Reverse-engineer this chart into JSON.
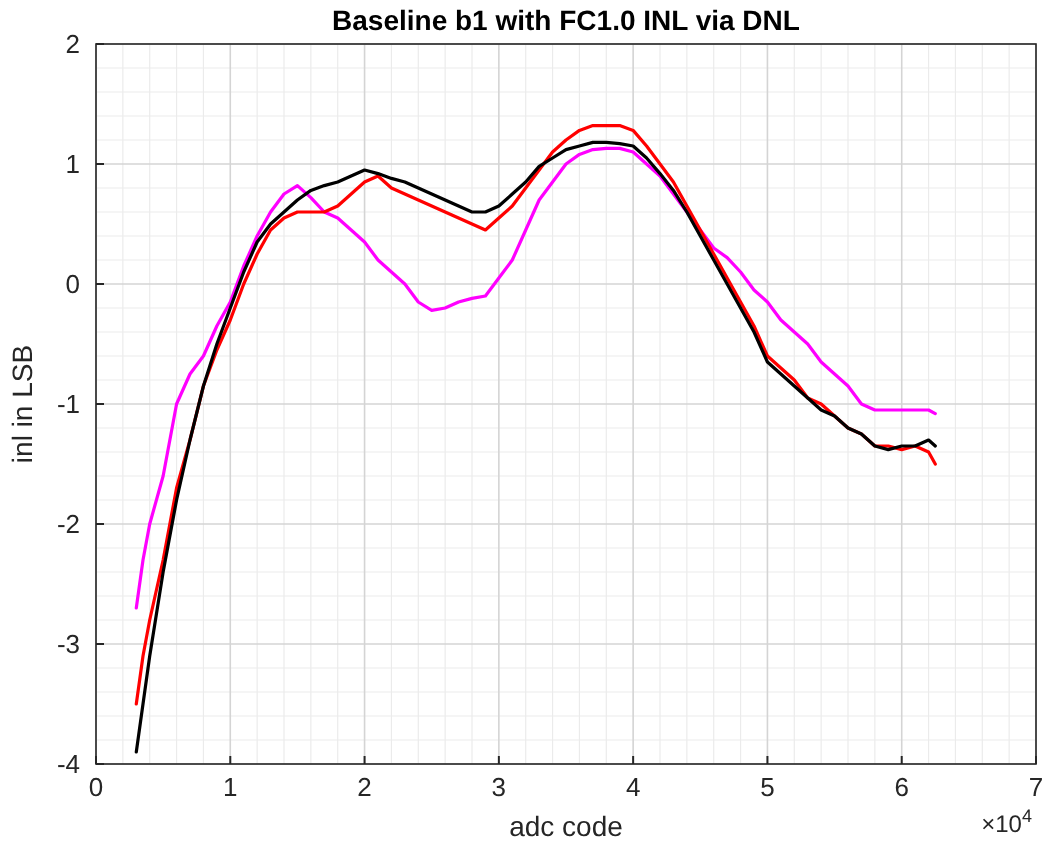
{
  "chart_data": {
    "type": "line",
    "title": "Baseline b1 with FC1.0 INL via DNL",
    "xlabel": "adc code",
    "ylabel": "inl in LSB",
    "annotations": [
      "×10$^{4}$"
    ],
    "x": [
      0.3,
      0.35,
      0.4,
      0.5,
      0.6,
      0.7,
      0.8,
      0.9,
      1.0,
      1.1,
      1.2,
      1.3,
      1.4,
      1.5,
      1.6,
      1.7,
      1.8,
      1.9,
      2.0,
      2.1,
      2.2,
      2.3,
      2.4,
      2.5,
      2.6,
      2.7,
      2.8,
      2.9,
      3.0,
      3.1,
      3.2,
      3.3,
      3.4,
      3.5,
      3.6,
      3.7,
      3.8,
      3.9,
      4.0,
      4.1,
      4.2,
      4.3,
      4.4,
      4.5,
      4.6,
      4.7,
      4.8,
      4.9,
      5.0,
      5.1,
      5.2,
      5.3,
      5.4,
      5.5,
      5.6,
      5.7,
      5.8,
      5.9,
      6.0,
      6.1,
      6.2,
      6.25
    ],
    "series": [
      {
        "color": "#ff00ff",
        "values": [
          -2.7,
          -2.3,
          -2.0,
          -1.6,
          -1.0,
          -0.75,
          -0.6,
          -0.35,
          -0.15,
          0.15,
          0.4,
          0.6,
          0.75,
          0.82,
          0.72,
          0.6,
          0.55,
          0.45,
          0.35,
          0.2,
          0.1,
          0.0,
          -0.15,
          -0.22,
          -0.2,
          -0.15,
          -0.12,
          -0.1,
          0.05,
          0.2,
          0.45,
          0.7,
          0.85,
          1.0,
          1.08,
          1.12,
          1.13,
          1.13,
          1.1,
          1.0,
          0.9,
          0.75,
          0.6,
          0.45,
          0.3,
          0.22,
          0.1,
          -0.05,
          -0.15,
          -0.3,
          -0.4,
          -0.5,
          -0.65,
          -0.75,
          -0.85,
          -1.0,
          -1.05,
          -1.05,
          -1.05,
          -1.05,
          -1.05,
          -1.08
        ]
      },
      {
        "color": "#ff0000",
        "values": [
          -3.5,
          -3.1,
          -2.8,
          -2.3,
          -1.7,
          -1.3,
          -0.85,
          -0.55,
          -0.3,
          0.0,
          0.25,
          0.45,
          0.55,
          0.6,
          0.6,
          0.6,
          0.65,
          0.75,
          0.85,
          0.9,
          0.8,
          0.75,
          0.7,
          0.65,
          0.6,
          0.55,
          0.5,
          0.45,
          0.55,
          0.65,
          0.8,
          0.95,
          1.1,
          1.2,
          1.28,
          1.32,
          1.32,
          1.32,
          1.28,
          1.15,
          1.0,
          0.85,
          0.65,
          0.45,
          0.25,
          0.05,
          -0.15,
          -0.35,
          -0.6,
          -0.7,
          -0.8,
          -0.95,
          -1.0,
          -1.1,
          -1.2,
          -1.25,
          -1.35,
          -1.35,
          -1.38,
          -1.35,
          -1.4,
          -1.5
        ]
      },
      {
        "color": "#000000",
        "values": [
          -3.9,
          -3.5,
          -3.1,
          -2.4,
          -1.8,
          -1.3,
          -0.85,
          -0.5,
          -0.2,
          0.1,
          0.35,
          0.5,
          0.6,
          0.7,
          0.78,
          0.82,
          0.85,
          0.9,
          0.95,
          0.92,
          0.88,
          0.85,
          0.8,
          0.75,
          0.7,
          0.65,
          0.6,
          0.6,
          0.65,
          0.75,
          0.85,
          0.98,
          1.05,
          1.12,
          1.15,
          1.18,
          1.18,
          1.17,
          1.15,
          1.05,
          0.92,
          0.78,
          0.6,
          0.4,
          0.2,
          0.0,
          -0.2,
          -0.4,
          -0.65,
          -0.75,
          -0.85,
          -0.95,
          -1.05,
          -1.1,
          -1.2,
          -1.25,
          -1.35,
          -1.38,
          -1.35,
          -1.35,
          -1.3,
          -1.35
        ]
      }
    ],
    "xlim": [
      0,
      7
    ],
    "xticks": [
      0,
      1,
      2,
      3,
      4,
      5,
      6,
      7
    ],
    "ylim": [
      -4,
      2
    ],
    "yticks": [
      -4,
      -3,
      -2,
      -1,
      0,
      1,
      2
    ],
    "grid": true,
    "line_style": "solid"
  }
}
